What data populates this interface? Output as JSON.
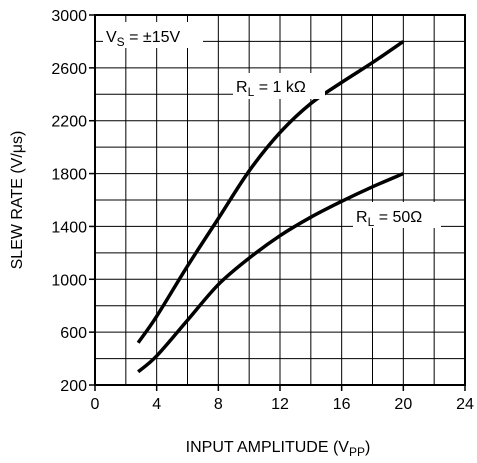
{
  "chart_data": {
    "type": "line",
    "xlabel": "INPUT AMPLITUDE (V",
    "xlabel_sub": "PP",
    "xlabel_close": ")",
    "ylabel": "SLEW RATE (V/μs)",
    "xlim": [
      0,
      24
    ],
    "ylim": [
      200,
      3000
    ],
    "x_ticks": [
      "0",
      "4",
      "8",
      "12",
      "16",
      "20",
      "24"
    ],
    "y_ticks": [
      "200",
      "600",
      "1000",
      "1400",
      "1800",
      "2200",
      "2600",
      "3000"
    ],
    "grid": true,
    "annotation": {
      "main": "V",
      "sub": "S",
      "rest": " = ±15V"
    },
    "series": [
      {
        "name_main": "R",
        "name_sub": "L",
        "name_rest": " = 1 kΩ",
        "x": [
          2.8,
          4,
          6,
          8,
          10,
          12,
          14,
          16,
          18,
          20
        ],
        "y": [
          520,
          720,
          1100,
          1460,
          1820,
          2110,
          2330,
          2490,
          2640,
          2800
        ]
      },
      {
        "name_main": "R",
        "name_sub": "L",
        "name_rest": " = 50Ω",
        "x": [
          2.8,
          4,
          6,
          8,
          10,
          12,
          14,
          16,
          18,
          20
        ],
        "y": [
          300,
          420,
          690,
          960,
          1160,
          1330,
          1470,
          1590,
          1700,
          1800
        ]
      }
    ]
  }
}
